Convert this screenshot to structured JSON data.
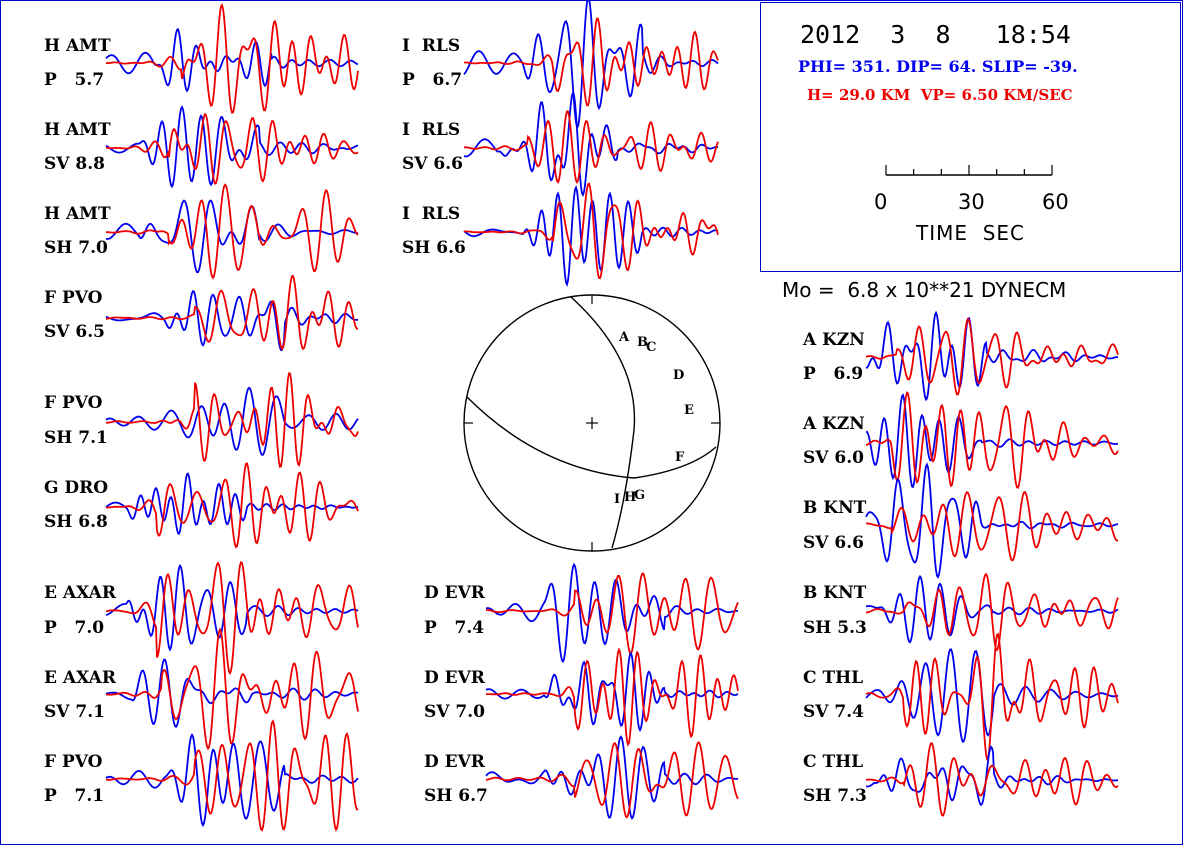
{
  "header": {
    "date": "2012  3  8   18:54",
    "mechanism": "PHI= 351. DIP= 64. SLIP= -39.",
    "depth_velocity": "H= 29.0 KM  VP= 6.50 KM/SEC",
    "scale_ticks": [
      "0",
      "30",
      "60"
    ],
    "time_label": "TIME  SEC",
    "moment": "Mo =  6.8 x 10**21 DYNECM"
  },
  "colors": {
    "observed": "#0000ee",
    "synthetic": "#ee0000",
    "frame": "#0000cc"
  },
  "traces": [
    {
      "line1": "H AMT",
      "line2": "P   5.7"
    },
    {
      "line1": "H AMT",
      "line2": "SV 8.8"
    },
    {
      "line1": "H AMT",
      "line2": "SH 7.0"
    },
    {
      "line1": "F PVO",
      "line2": "SV 6.5"
    },
    {
      "line1": "F PVO",
      "line2": "SH 7.1"
    },
    {
      "line1": "G DRO",
      "line2": "SH 6.8"
    },
    {
      "line1": "E AXAR",
      "line2": "P   7.0"
    },
    {
      "line1": "E AXAR",
      "line2": "SV 7.1"
    },
    {
      "line1": "F PVO",
      "line2": "P   7.1"
    },
    {
      "line1": "I  RLS",
      "line2": "P   6.7"
    },
    {
      "line1": "I  RLS",
      "line2": "SV 6.6"
    },
    {
      "line1": "I  RLS",
      "line2": "SH 6.6"
    },
    {
      "line1": "D EVR",
      "line2": "P   7.4"
    },
    {
      "line1": "D EVR",
      "line2": "SV 7.0"
    },
    {
      "line1": "D EVR",
      "line2": "SH 6.7"
    },
    {
      "line1": "A KZN",
      "line2": "P   6.9"
    },
    {
      "line1": "A KZN",
      "line2": "SV 6.0"
    },
    {
      "line1": "B KNT",
      "line2": "SV 6.6"
    },
    {
      "line1": "B KNT",
      "line2": "SH 5.3"
    },
    {
      "line1": "C THL",
      "line2": "SV 7.4"
    },
    {
      "line1": "C THL",
      "line2": "SH 7.3"
    }
  ],
  "focal_sphere": {
    "stations": [
      "A",
      "B",
      "C",
      "D",
      "E",
      "F",
      "G",
      "H",
      "I"
    ]
  }
}
